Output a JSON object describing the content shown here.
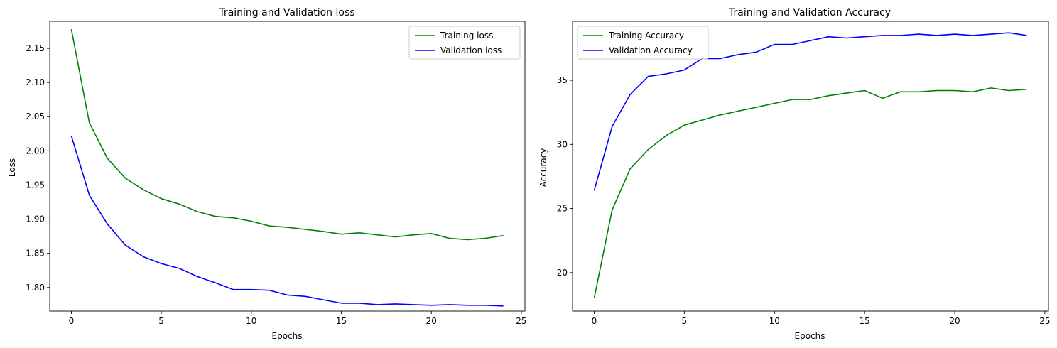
{
  "chart_data": [
    {
      "type": "line",
      "title": "Training and Validation loss",
      "xlabel": "Epochs",
      "ylabel": "Loss",
      "xlim": [
        -1.2,
        25.2
      ],
      "ylim": [
        1.7655,
        2.1895
      ],
      "xticks": [
        0,
        5,
        10,
        15,
        20,
        25
      ],
      "yticks": [
        1.8,
        1.85,
        1.9,
        1.95,
        2.0,
        2.05,
        2.1,
        2.15
      ],
      "ytick_decimals": 2,
      "grid": false,
      "legend_position": "top-right",
      "x": [
        0,
        1,
        2,
        3,
        4,
        5,
        6,
        7,
        8,
        9,
        10,
        11,
        12,
        13,
        14,
        15,
        16,
        17,
        18,
        19,
        20,
        21,
        22,
        23,
        24
      ],
      "series": [
        {
          "name": "Training loss",
          "color": "#008000",
          "values": [
            2.178,
            2.041,
            1.989,
            1.96,
            1.943,
            1.93,
            1.922,
            1.911,
            1.904,
            1.902,
            1.897,
            1.89,
            1.888,
            1.885,
            1.882,
            1.878,
            1.88,
            1.877,
            1.874,
            1.877,
            1.879,
            1.872,
            1.87,
            1.872,
            1.876
          ]
        },
        {
          "name": "Validation loss",
          "color": "#0000ff",
          "values": [
            2.022,
            1.935,
            1.893,
            1.862,
            1.845,
            1.835,
            1.828,
            1.816,
            1.807,
            1.797,
            1.797,
            1.796,
            1.789,
            1.787,
            1.782,
            1.777,
            1.777,
            1.775,
            1.776,
            1.775,
            1.774,
            1.775,
            1.774,
            1.774,
            1.773
          ]
        }
      ]
    },
    {
      "type": "line",
      "title": "Training and Validation Accuracy",
      "xlabel": "Epochs",
      "ylabel": "Accuracy",
      "xlim": [
        -1.2,
        25.2
      ],
      "ylim": [
        17.0,
        39.6
      ],
      "xticks": [
        0,
        5,
        10,
        15,
        20,
        25
      ],
      "yticks": [
        20,
        25,
        30,
        35
      ],
      "ytick_decimals": 0,
      "grid": false,
      "legend_position": "top-left",
      "x": [
        0,
        1,
        2,
        3,
        4,
        5,
        6,
        7,
        8,
        9,
        10,
        11,
        12,
        13,
        14,
        15,
        16,
        17,
        18,
        19,
        20,
        21,
        22,
        23,
        24
      ],
      "series": [
        {
          "name": "Training Accuracy",
          "color": "#008000",
          "values": [
            18.0,
            24.9,
            28.1,
            29.6,
            30.7,
            31.5,
            31.9,
            32.3,
            32.6,
            32.9,
            33.2,
            33.5,
            33.5,
            33.8,
            34.0,
            34.2,
            33.6,
            34.1,
            34.1,
            34.2,
            34.2,
            34.1,
            34.4,
            34.2,
            34.3
          ]
        },
        {
          "name": "Validation Accuracy",
          "color": "#0000ff",
          "values": [
            26.4,
            31.4,
            33.9,
            35.3,
            35.5,
            35.8,
            36.7,
            36.7,
            37.0,
            37.2,
            37.8,
            37.8,
            38.1,
            38.4,
            38.3,
            38.4,
            38.5,
            38.5,
            38.6,
            38.5,
            38.6,
            38.5,
            38.6,
            38.7,
            38.5
          ]
        }
      ]
    }
  ]
}
